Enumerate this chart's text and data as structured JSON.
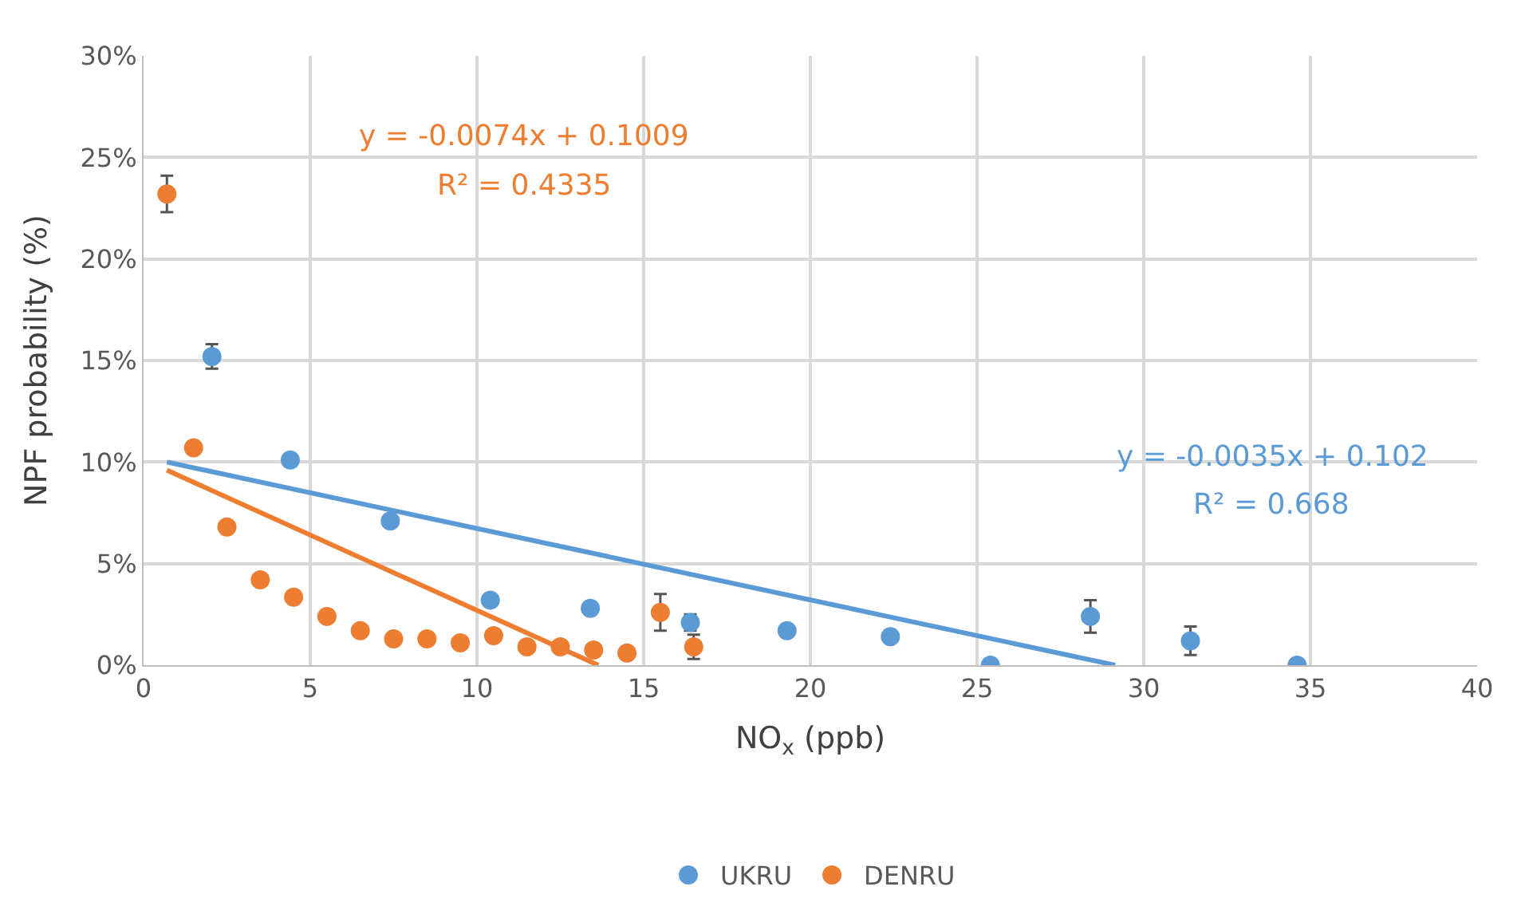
{
  "chart_data": {
    "type": "scatter",
    "xlabel": "NO$_{x}$ (ppb)",
    "ylabel": "NPF probability (%)",
    "xlim": [
      0,
      40
    ],
    "xticks": [
      0,
      5,
      10,
      15,
      20,
      25,
      30,
      35,
      40
    ],
    "ylim": [
      0,
      30
    ],
    "yticks": [
      {
        "value": 0,
        "label": "0%"
      },
      {
        "value": 5,
        "label": "5%"
      },
      {
        "value": 10,
        "label": "10%"
      },
      {
        "value": 15,
        "label": "15%"
      },
      {
        "value": 20,
        "label": "20%"
      },
      {
        "value": 25,
        "label": "25%"
      },
      {
        "value": 30,
        "label": "30%"
      }
    ],
    "grid": true,
    "legend": "bottom",
    "marker": "circle",
    "series": [
      {
        "name": "UKRU",
        "color": "#5b9bd5",
        "x": [
          2.05,
          4.4,
          7.4,
          10.4,
          13.4,
          16.4,
          19.3,
          22.4,
          25.4,
          28.4,
          31.4,
          34.6
        ],
        "values": [
          15.2,
          10.1,
          7.1,
          3.2,
          2.8,
          2.1,
          1.7,
          1.4,
          0,
          2.4,
          1.2,
          0
        ],
        "errors": [
          0.6,
          null,
          null,
          null,
          null,
          0.4,
          null,
          null,
          null,
          0.8,
          0.7,
          null
        ]
      },
      {
        "name": "DENRU",
        "color": "#ed7d31",
        "x": [
          0.7,
          1.5,
          2.5,
          3.5,
          4.5,
          5.5,
          6.5,
          7.5,
          8.5,
          9.5,
          10.5,
          11.5,
          12.5,
          13.5,
          14.5,
          15.5,
          16.5
        ],
        "values": [
          23.2,
          10.7,
          6.8,
          4.2,
          3.35,
          2.4,
          1.7,
          1.3,
          1.3,
          1.1,
          1.45,
          0.9,
          0.9,
          0.75,
          0.6,
          2.6,
          0.9
        ],
        "errors": [
          0.9,
          null,
          null,
          null,
          null,
          null,
          null,
          null,
          null,
          null,
          null,
          null,
          null,
          null,
          null,
          0.9,
          0.6
        ]
      },
      {
        "type": "line",
        "marker": "none",
        "color": "#5b9bd5",
        "x": [
          0.7,
          29.14
        ],
        "values": [
          10,
          0
        ]
      },
      {
        "type": "line",
        "marker": "none",
        "color": "#ed7d31",
        "x": [
          0.7,
          13.64
        ],
        "values": [
          9.6,
          0
        ]
      }
    ],
    "annotations": [
      "y = -0.0074x + 0.1009",
      "R² = 0.4335",
      "y = -0.0035x + 0.102",
      "R² = 0.668"
    ]
  }
}
